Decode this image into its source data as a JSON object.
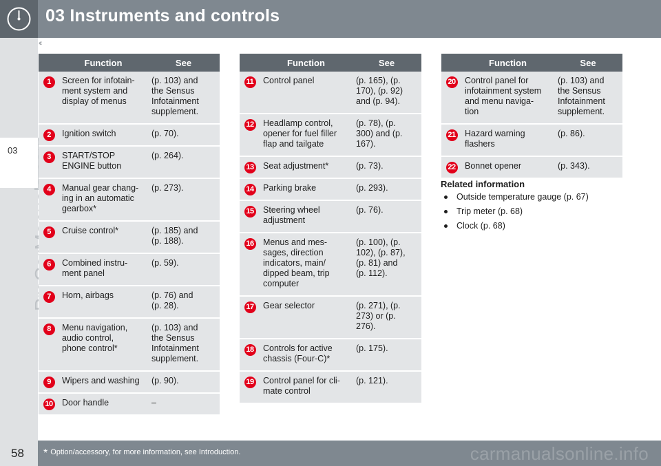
{
  "header": {
    "title": "03 Instruments and controls",
    "back_glyph": "‹‹"
  },
  "side": {
    "chapter": "03",
    "watermark": "ProCarManuals.com"
  },
  "table_headers": {
    "function": "Function",
    "see": "See"
  },
  "tables": [
    {
      "rows": [
        {
          "num": "1",
          "fn": "Screen for infotain-\nment system and\ndisplay of menus",
          "see": "(p. 103) and\nthe Sensus\nInfotainment\nsupplement."
        },
        {
          "num": "2",
          "fn": "Ignition switch",
          "see": "(p. 70)."
        },
        {
          "num": "3",
          "fn": "START/STOP\nENGINE button",
          "see": "(p. 264)."
        },
        {
          "num": "4",
          "fn": "Manual gear chang-\ning in an automatic\ngearbox*",
          "see": "(p. 273)."
        },
        {
          "num": "5",
          "fn": "Cruise control*",
          "see": "(p. 185) and\n(p. 188)."
        },
        {
          "num": "6",
          "fn": "Combined instru-\nment panel",
          "see": "(p. 59)."
        },
        {
          "num": "7",
          "fn": "Horn, airbags",
          "see": "(p. 76) and\n(p. 28)."
        },
        {
          "num": "8",
          "fn": "Menu navigation,\naudio control,\nphone control*",
          "see": "(p. 103) and\nthe Sensus\nInfotainment\nsupplement."
        },
        {
          "num": "9",
          "fn": "Wipers and washing",
          "see": "(p. 90)."
        },
        {
          "num": "10",
          "fn": "Door handle",
          "see": "–"
        }
      ]
    },
    {
      "rows": [
        {
          "num": "11",
          "fn": "Control panel",
          "see": "(p. 165), (p.\n170), (p. 92)\nand (p. 94)."
        },
        {
          "num": "12",
          "fn": "Headlamp control,\nopener for fuel filler\nflap and tailgate",
          "see": "(p. 78), (p.\n300) and (p.\n167)."
        },
        {
          "num": "13",
          "fn": "Seat adjustment*",
          "see": "(p. 73)."
        },
        {
          "num": "14",
          "fn": "Parking brake",
          "see": "(p. 293)."
        },
        {
          "num": "15",
          "fn": "Steering wheel\nadjustment",
          "see": "(p. 76)."
        },
        {
          "num": "16",
          "fn": "Menus and mes-\nsages, direction\nindicators, main/\ndipped beam, trip\ncomputer",
          "see": "(p. 100), (p.\n102), (p. 87),\n(p. 81) and\n(p. 112)."
        },
        {
          "num": "17",
          "fn": "Gear selector",
          "see": "(p. 271), (p.\n273) or (p.\n276)."
        },
        {
          "num": "18",
          "fn": "Controls for active\nchassis (Four-C)*",
          "see": "(p. 175)."
        },
        {
          "num": "19",
          "fn": "Control panel for cli-\nmate control",
          "see": "(p. 121)."
        }
      ]
    },
    {
      "rows": [
        {
          "num": "20",
          "fn": "Control panel for\ninfotainment system\nand menu naviga-\ntion",
          "see": "(p. 103) and\nthe Sensus\nInfotainment\nsupplement."
        },
        {
          "num": "21",
          "fn": "Hazard warning\nflashers",
          "see": "(p. 86)."
        },
        {
          "num": "22",
          "fn": "Bonnet opener",
          "see": "(p. 343)."
        }
      ]
    }
  ],
  "related": {
    "title": "Related information",
    "items": [
      "Outside temperature gauge (p. 67)",
      "Trip meter (p. 68)",
      "Clock (p. 68)"
    ]
  },
  "footer": {
    "page": "58",
    "star": "*",
    "note": "Option/accessory, for more information, see Introduction.",
    "watermark": "carmanualsonline.info"
  },
  "colors": {
    "header_bg": "#7f8890",
    "table_header_bg": "#5f676e",
    "row_bg": "#e3e5e7",
    "badge_red": "#e2001a",
    "side_strip": "#dfe1e3"
  }
}
